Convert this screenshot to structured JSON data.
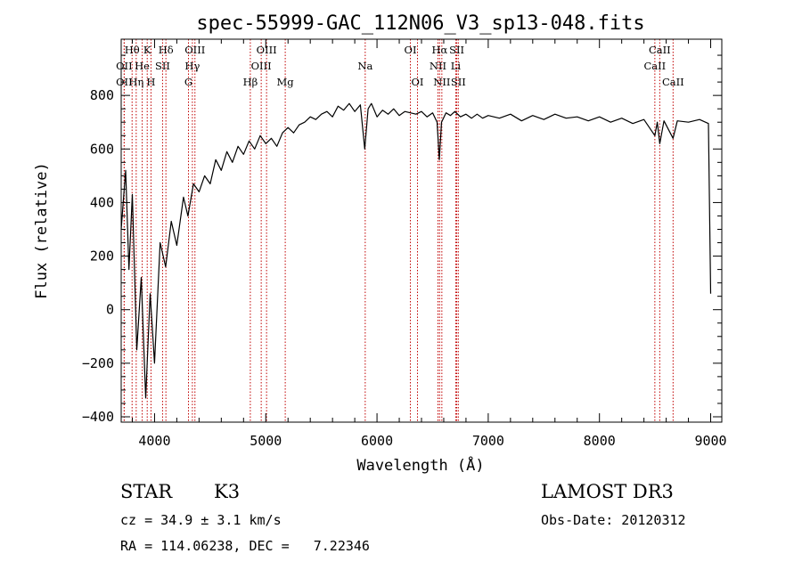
{
  "chart_data": {
    "type": "line",
    "title": "spec-55999-GAC_112N06_V3_sp13-048.fits",
    "xlabel": "Wavelength (Å)",
    "ylabel": "Flux (relative)",
    "xlim": [
      3700,
      9100
    ],
    "ylim": [
      -420,
      1010
    ],
    "xticks": [
      4000,
      5000,
      6000,
      7000,
      8000,
      9000
    ],
    "yticks": [
      -400,
      -200,
      0,
      200,
      400,
      600,
      800
    ],
    "series": [
      {
        "name": "flux",
        "points": [
          [
            3700,
            300
          ],
          [
            3740,
            520
          ],
          [
            3770,
            150
          ],
          [
            3800,
            430
          ],
          [
            3840,
            -150
          ],
          [
            3880,
            120
          ],
          [
            3920,
            -330
          ],
          [
            3960,
            60
          ],
          [
            4000,
            -200
          ],
          [
            4050,
            250
          ],
          [
            4100,
            160
          ],
          [
            4150,
            330
          ],
          [
            4200,
            240
          ],
          [
            4260,
            420
          ],
          [
            4300,
            350
          ],
          [
            4350,
            470
          ],
          [
            4400,
            440
          ],
          [
            4450,
            500
          ],
          [
            4500,
            470
          ],
          [
            4550,
            560
          ],
          [
            4600,
            520
          ],
          [
            4650,
            590
          ],
          [
            4700,
            550
          ],
          [
            4750,
            610
          ],
          [
            4800,
            580
          ],
          [
            4850,
            630
          ],
          [
            4900,
            600
          ],
          [
            4950,
            650
          ],
          [
            5000,
            620
          ],
          [
            5050,
            640
          ],
          [
            5100,
            610
          ],
          [
            5150,
            660
          ],
          [
            5200,
            680
          ],
          [
            5250,
            660
          ],
          [
            5300,
            690
          ],
          [
            5350,
            700
          ],
          [
            5400,
            720
          ],
          [
            5450,
            710
          ],
          [
            5500,
            730
          ],
          [
            5550,
            740
          ],
          [
            5600,
            720
          ],
          [
            5650,
            760
          ],
          [
            5700,
            745
          ],
          [
            5750,
            770
          ],
          [
            5800,
            740
          ],
          [
            5850,
            765
          ],
          [
            5890,
            600
          ],
          [
            5920,
            750
          ],
          [
            5950,
            770
          ],
          [
            6000,
            720
          ],
          [
            6050,
            745
          ],
          [
            6100,
            730
          ],
          [
            6150,
            750
          ],
          [
            6200,
            725
          ],
          [
            6250,
            740
          ],
          [
            6300,
            735
          ],
          [
            6350,
            730
          ],
          [
            6400,
            740
          ],
          [
            6450,
            720
          ],
          [
            6500,
            735
          ],
          [
            6540,
            700
          ],
          [
            6560,
            560
          ],
          [
            6580,
            700
          ],
          [
            6620,
            735
          ],
          [
            6660,
            725
          ],
          [
            6700,
            740
          ],
          [
            6750,
            720
          ],
          [
            6800,
            730
          ],
          [
            6850,
            715
          ],
          [
            6900,
            730
          ],
          [
            6950,
            715
          ],
          [
            7000,
            725
          ],
          [
            7100,
            715
          ],
          [
            7200,
            730
          ],
          [
            7300,
            705
          ],
          [
            7400,
            725
          ],
          [
            7500,
            710
          ],
          [
            7600,
            730
          ],
          [
            7700,
            715
          ],
          [
            7800,
            720
          ],
          [
            7900,
            705
          ],
          [
            8000,
            720
          ],
          [
            8100,
            700
          ],
          [
            8200,
            715
          ],
          [
            8300,
            695
          ],
          [
            8400,
            710
          ],
          [
            8498,
            650
          ],
          [
            8520,
            700
          ],
          [
            8542,
            620
          ],
          [
            8580,
            705
          ],
          [
            8662,
            640
          ],
          [
            8700,
            705
          ],
          [
            8800,
            700
          ],
          [
            8900,
            710
          ],
          [
            8980,
            695
          ],
          [
            9000,
            60
          ]
        ]
      }
    ],
    "spectral_lines": [
      {
        "label": "Hθ",
        "wl": 3798,
        "row": 0
      },
      {
        "label": "OII",
        "wl": 3727,
        "row": 1
      },
      {
        "label": "OII",
        "wl": 3727,
        "row": 2
      },
      {
        "label": "Hη",
        "wl": 3835,
        "row": 2
      },
      {
        "label": "He",
        "wl": 3889,
        "row": 1
      },
      {
        "label": "K",
        "wl": 3934,
        "row": 0
      },
      {
        "label": "H",
        "wl": 3968,
        "row": 2
      },
      {
        "label": "Hδ",
        "wl": 4102,
        "row": 0
      },
      {
        "label": "SII",
        "wl": 4072,
        "row": 1
      },
      {
        "label": "OIII",
        "wl": 4363,
        "row": 0
      },
      {
        "label": "Hγ",
        "wl": 4340,
        "row": 1
      },
      {
        "label": "G",
        "wl": 4305,
        "row": 2
      },
      {
        "label": "Hβ",
        "wl": 4861,
        "row": 2
      },
      {
        "label": "OIII",
        "wl": 5007,
        "row": 0
      },
      {
        "label": "OIII",
        "wl": 4959,
        "row": 1
      },
      {
        "label": "Mg",
        "wl": 5175,
        "row": 2
      },
      {
        "label": "Na",
        "wl": 5894,
        "row": 1
      },
      {
        "label": "OI",
        "wl": 6300,
        "row": 0
      },
      {
        "label": "OI",
        "wl": 6364,
        "row": 2
      },
      {
        "label": "Hα",
        "wl": 6563,
        "row": 0
      },
      {
        "label": "NII",
        "wl": 6548,
        "row": 1
      },
      {
        "label": "NII",
        "wl": 6583,
        "row": 2
      },
      {
        "label": "SII",
        "wl": 6717,
        "row": 0
      },
      {
        "label": "Li",
        "wl": 6708,
        "row": 1
      },
      {
        "label": "SII",
        "wl": 6731,
        "row": 2
      },
      {
        "label": "CaII",
        "wl": 8542,
        "row": 0
      },
      {
        "label": "CaII",
        "wl": 8498,
        "row": 1
      },
      {
        "label": "CaII",
        "wl": 8662,
        "row": 2
      }
    ]
  },
  "info": {
    "object_class": "STAR",
    "subclass": "K3",
    "survey": "LAMOST DR3",
    "redshift_text": "cz = 34.9 ± 3.1 km/s",
    "obs_date_text": "Obs-Date: 20120312",
    "coords_text": "RA = 114.06238, DEC =   7.22346"
  },
  "colors": {
    "line_marker": "#c00000",
    "spectrum": "#000000",
    "axes": "#000000"
  }
}
